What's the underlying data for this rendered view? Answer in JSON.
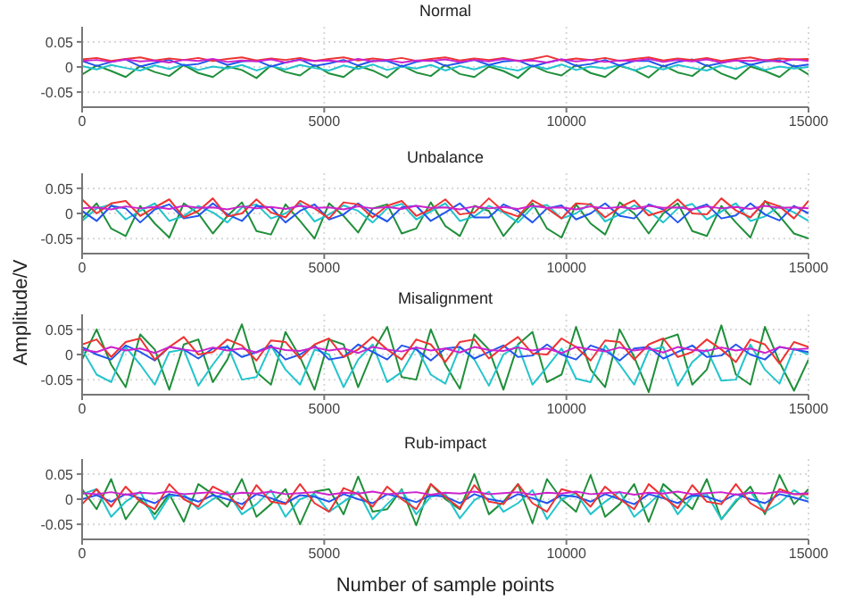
{
  "chart_data": [
    {
      "type": "line",
      "title": "Normal",
      "ylim": [
        -0.08,
        0.08
      ],
      "yticks": [
        -0.05,
        0,
        0.05
      ],
      "xlim": [
        0,
        15000
      ],
      "xticks": [
        0,
        5000,
        10000,
        15000
      ],
      "grid": true,
      "marker": "none",
      "x": [
        0,
        300,
        600,
        900,
        1200,
        1500,
        1800,
        2100,
        2400,
        2700,
        3000,
        3300,
        3600,
        3900,
        4200,
        4500,
        4800,
        5100,
        5400,
        5700,
        6000,
        6300,
        6600,
        6900,
        7200,
        7500,
        7800,
        8100,
        8400,
        8700,
        9000,
        9300,
        9600,
        9900,
        10200,
        10500,
        10800,
        11100,
        11400,
        11700,
        12000,
        12300,
        12600,
        12900,
        13200,
        13500,
        13800,
        14100,
        14400,
        14700,
        15000
      ],
      "series": [
        {
          "color": "#1f8f3a",
          "values": [
            -0.015,
            0.003,
            -0.008,
            -0.02,
            0.002,
            -0.01,
            -0.018,
            0.004,
            -0.012,
            -0.02,
            0.001,
            -0.006,
            -0.022,
            0.003,
            -0.01,
            -0.017,
            0.004,
            -0.013,
            -0.02,
            0.002,
            -0.007,
            -0.021,
            0.003,
            -0.011,
            -0.018,
            0.004,
            -0.014,
            -0.02,
            0.001,
            -0.008,
            -0.022,
            0.003,
            -0.01,
            -0.017,
            0.004,
            -0.012,
            -0.02,
            0.002,
            -0.006,
            -0.021,
            0.003,
            -0.011,
            -0.018,
            0.004,
            -0.013,
            -0.024,
            0.001,
            -0.008,
            -0.02,
            0.003,
            -0.015
          ]
        },
        {
          "color": "#22c4cc",
          "values": [
            0.002,
            -0.005,
            0.004,
            -0.002,
            -0.007,
            0.003,
            -0.004,
            0.005,
            -0.006,
            0.001,
            -0.003,
            0.004,
            -0.007,
            0.002,
            -0.005,
            0.004,
            -0.002,
            -0.007,
            0.003,
            -0.004,
            0.005,
            -0.006,
            0.001,
            -0.003,
            0.004,
            -0.007,
            0.002,
            -0.005,
            0.004,
            -0.002,
            -0.007,
            0.003,
            -0.004,
            0.005,
            -0.006,
            0.001,
            -0.003,
            0.004,
            -0.007,
            0.002,
            -0.005,
            0.004,
            -0.002,
            -0.007,
            0.003,
            -0.004,
            0.005,
            -0.006,
            0.001,
            -0.003,
            0.0
          ]
        },
        {
          "color": "#2255ee",
          "values": [
            0.012,
            0.002,
            0.01,
            0.015,
            0.001,
            0.008,
            0.014,
            0.003,
            0.006,
            0.015,
            0.004,
            0.011,
            0.013,
            0.001,
            0.009,
            0.015,
            0.002,
            0.007,
            0.014,
            0.003,
            0.012,
            0.012,
            0.001,
            0.01,
            0.015,
            0.002,
            0.008,
            0.014,
            0.004,
            0.011,
            0.013,
            0.001,
            0.009,
            0.015,
            0.002,
            0.006,
            0.014,
            0.003,
            0.012,
            0.012,
            0.001,
            0.01,
            0.015,
            0.002,
            0.008,
            0.014,
            0.004,
            0.011,
            0.013,
            0.001,
            0.005
          ]
        },
        {
          "color": "#ee3333",
          "values": [
            0.015,
            0.018,
            0.012,
            0.016,
            0.019,
            0.013,
            0.017,
            0.014,
            0.018,
            0.012,
            0.016,
            0.019,
            0.013,
            0.017,
            0.014,
            0.018,
            0.012,
            0.016,
            0.019,
            0.013,
            0.017,
            0.014,
            0.018,
            0.012,
            0.016,
            0.019,
            0.013,
            0.017,
            0.014,
            0.018,
            0.012,
            0.016,
            0.022,
            0.013,
            0.017,
            0.014,
            0.018,
            0.012,
            0.016,
            0.019,
            0.013,
            0.017,
            0.014,
            0.018,
            0.012,
            0.016,
            0.019,
            0.013,
            0.017,
            0.015,
            0.016
          ]
        },
        {
          "color": "#cc22cc",
          "values": [
            0.012,
            0.014,
            0.01,
            0.015,
            0.011,
            0.013,
            0.009,
            0.014,
            0.012,
            0.016,
            0.01,
            0.013,
            0.011,
            0.015,
            0.009,
            0.014,
            0.012,
            0.013,
            0.01,
            0.016,
            0.011,
            0.014,
            0.009,
            0.013,
            0.012,
            0.015,
            0.01,
            0.014,
            0.011,
            0.016,
            0.012,
            0.013,
            0.009,
            0.015,
            0.011,
            0.014,
            0.01,
            0.013,
            0.012,
            0.016,
            0.01,
            0.014,
            0.011,
            0.015,
            0.009,
            0.013,
            0.012,
            0.014,
            0.01,
            0.015,
            0.012
          ]
        }
      ]
    },
    {
      "type": "line",
      "title": "Unbalance",
      "ylim": [
        -0.08,
        0.08
      ],
      "yticks": [
        -0.05,
        0,
        0.05
      ],
      "xlim": [
        0,
        15000
      ],
      "xticks": [
        0,
        5000,
        10000,
        15000
      ],
      "grid": true,
      "marker": "none",
      "x": [
        0,
        300,
        600,
        900,
        1200,
        1500,
        1800,
        2100,
        2400,
        2700,
        3000,
        3300,
        3600,
        3900,
        4200,
        4500,
        4800,
        5100,
        5400,
        5700,
        6000,
        6300,
        6600,
        6900,
        7200,
        7500,
        7800,
        8100,
        8400,
        8700,
        9000,
        9300,
        9600,
        9900,
        10200,
        10500,
        10800,
        11100,
        11400,
        11700,
        12000,
        12300,
        12600,
        12900,
        13200,
        13500,
        13800,
        14100,
        14400,
        14700,
        15000
      ],
      "series": [
        {
          "color": "#1f8f3a",
          "values": [
            -0.01,
            0.02,
            -0.03,
            -0.045,
            0.015,
            -0.02,
            -0.048,
            0.02,
            0.0,
            -0.04,
            -0.005,
            0.022,
            -0.035,
            -0.042,
            0.018,
            -0.015,
            -0.05,
            0.02,
            -0.005,
            -0.038,
            0.01,
            0.018,
            -0.04,
            -0.03,
            0.022,
            -0.025,
            -0.045,
            0.015,
            0.005,
            -0.045,
            -0.01,
            0.02,
            -0.03,
            -0.048,
            0.018,
            -0.02,
            -0.042,
            0.022,
            0.0,
            -0.04,
            0.0,
            0.02,
            -0.035,
            -0.045,
            0.015,
            -0.018,
            -0.048,
            0.025,
            -0.005,
            -0.04,
            -0.05
          ]
        },
        {
          "color": "#22c4cc",
          "values": [
            -0.015,
            0.01,
            0.018,
            -0.012,
            0.005,
            0.02,
            -0.015,
            -0.005,
            0.015,
            0.002,
            -0.018,
            0.012,
            0.018,
            -0.01,
            0.0,
            0.02,
            -0.016,
            -0.002,
            0.016,
            0.005,
            -0.018,
            0.01,
            0.019,
            -0.012,
            0.004,
            0.02,
            -0.015,
            -0.006,
            0.015,
            0.002,
            -0.018,
            0.012,
            0.017,
            -0.01,
            0.0,
            0.02,
            -0.016,
            -0.002,
            0.016,
            0.005,
            -0.018,
            0.01,
            0.019,
            -0.012,
            0.004,
            0.02,
            -0.015,
            -0.006,
            0.015,
            0.002,
            -0.015
          ]
        },
        {
          "color": "#2255ee",
          "values": [
            0.005,
            -0.015,
            0.015,
            0.01,
            -0.018,
            0.008,
            0.018,
            -0.01,
            -0.005,
            0.02,
            -0.002,
            -0.015,
            0.015,
            0.012,
            -0.018,
            0.005,
            0.018,
            -0.012,
            -0.002,
            0.02,
            0.0,
            -0.016,
            0.012,
            0.015,
            -0.015,
            0.002,
            0.02,
            -0.008,
            -0.008,
            0.018,
            0.005,
            -0.018,
            0.01,
            0.016,
            -0.012,
            0.0,
            0.02,
            -0.005,
            -0.01,
            0.018,
            0.008,
            -0.018,
            0.008,
            0.018,
            -0.01,
            -0.004,
            0.02,
            -0.002,
            -0.014,
            0.015,
            0.0
          ]
        },
        {
          "color": "#ee3333",
          "values": [
            0.028,
            0.0,
            0.02,
            0.025,
            -0.005,
            0.012,
            0.028,
            -0.008,
            0.005,
            0.03,
            -0.006,
            0.0,
            0.028,
            0.002,
            -0.008,
            0.025,
            0.01,
            -0.01,
            0.022,
            0.018,
            -0.008,
            0.015,
            0.025,
            -0.005,
            0.008,
            0.028,
            -0.002,
            0.002,
            0.03,
            0.004,
            -0.006,
            0.026,
            0.01,
            -0.01,
            0.02,
            0.018,
            -0.008,
            0.012,
            0.026,
            -0.004,
            0.005,
            0.028,
            0.0,
            -0.002,
            0.03,
            0.006,
            -0.008,
            0.024,
            0.014,
            -0.01,
            0.025
          ]
        },
        {
          "color": "#cc22cc",
          "values": [
            0.01,
            0.012,
            0.008,
            0.014,
            0.01,
            0.013,
            0.009,
            0.015,
            0.011,
            0.012,
            0.008,
            0.014,
            0.01,
            0.013,
            0.009,
            0.015,
            0.011,
            0.012,
            0.008,
            0.014,
            0.01,
            0.013,
            0.009,
            0.015,
            0.011,
            0.012,
            0.008,
            0.014,
            0.01,
            0.013,
            0.009,
            0.015,
            0.011,
            0.012,
            0.008,
            0.014,
            0.01,
            0.013,
            0.009,
            0.015,
            0.011,
            0.012,
            0.008,
            0.014,
            0.01,
            0.013,
            0.009,
            0.015,
            0.011,
            0.012,
            0.01
          ]
        }
      ]
    },
    {
      "type": "line",
      "title": "Misalignment",
      "ylabel": "Amplitude/V",
      "ylim": [
        -0.08,
        0.08
      ],
      "yticks": [
        -0.05,
        0,
        0.05
      ],
      "xlim": [
        0,
        15000
      ],
      "xticks": [
        0,
        5000,
        10000,
        15000
      ],
      "grid": true,
      "marker": "none",
      "x": [
        0,
        300,
        600,
        900,
        1200,
        1500,
        1800,
        2100,
        2400,
        2700,
        3000,
        3300,
        3600,
        3900,
        4200,
        4500,
        4800,
        5100,
        5400,
        5700,
        6000,
        6300,
        6600,
        6900,
        7200,
        7500,
        7800,
        8100,
        8400,
        8700,
        9000,
        9300,
        9600,
        9900,
        10200,
        10500,
        10800,
        11100,
        11400,
        11700,
        12000,
        12300,
        12600,
        12900,
        13200,
        13500,
        13800,
        14100,
        14400,
        14700,
        15000
      ],
      "series": [
        {
          "color": "#1f8f3a",
          "values": [
            -0.01,
            0.05,
            -0.02,
            -0.065,
            0.04,
            0.01,
            -0.07,
            0.02,
            0.03,
            -0.055,
            -0.01,
            0.06,
            -0.035,
            -0.06,
            0.045,
            -0.005,
            -0.07,
            0.03,
            0.02,
            -0.065,
            0.005,
            0.055,
            -0.045,
            -0.05,
            0.05,
            -0.02,
            -0.068,
            0.04,
            0.01,
            -0.07,
            0.02,
            0.045,
            -0.055,
            -0.04,
            0.055,
            -0.03,
            -0.065,
            0.05,
            -0.005,
            -0.075,
            0.03,
            0.04,
            -0.06,
            -0.03,
            0.058,
            -0.04,
            -0.06,
            0.055,
            -0.015,
            -0.072,
            -0.01
          ]
        },
        {
          "color": "#22c4cc",
          "values": [
            0.01,
            -0.04,
            -0.055,
            0.015,
            -0.02,
            -0.06,
            0.005,
            0.01,
            -0.062,
            -0.02,
            0.018,
            -0.05,
            -0.045,
            0.018,
            -0.03,
            -0.06,
            0.01,
            0.0,
            -0.065,
            -0.01,
            0.02,
            -0.055,
            -0.035,
            0.015,
            -0.04,
            -0.058,
            0.015,
            -0.01,
            -0.062,
            0.0,
            0.018,
            -0.06,
            -0.025,
            0.012,
            -0.048,
            -0.055,
            0.018,
            -0.02,
            -0.06,
            0.008,
            0.015,
            -0.062,
            -0.015,
            0.01,
            -0.052,
            -0.05,
            0.02,
            -0.03,
            -0.058,
            0.012,
            0.0
          ]
        },
        {
          "color": "#2255ee",
          "values": [
            0.015,
            0.0,
            -0.01,
            0.018,
            0.005,
            -0.012,
            0.015,
            0.01,
            -0.008,
            0.012,
            0.015,
            -0.005,
            0.005,
            0.018,
            -0.01,
            0.0,
            0.018,
            -0.01,
            -0.005,
            0.02,
            0.005,
            -0.01,
            0.018,
            0.01,
            -0.012,
            0.012,
            0.015,
            -0.008,
            0.005,
            0.018,
            -0.005,
            -0.002,
            0.02,
            0.0,
            -0.01,
            0.018,
            0.008,
            -0.012,
            0.012,
            0.015,
            -0.008,
            0.005,
            0.018,
            -0.005,
            -0.002,
            0.02,
            0.0,
            -0.01,
            0.015,
            0.01,
            0.005
          ]
        },
        {
          "color": "#ee3333",
          "values": [
            0.02,
            0.03,
            -0.005,
            0.025,
            0.032,
            -0.01,
            0.015,
            0.035,
            0.0,
            0.005,
            0.03,
            0.018,
            -0.012,
            0.028,
            0.025,
            -0.008,
            0.02,
            0.032,
            -0.005,
            0.01,
            0.035,
            0.01,
            -0.01,
            0.03,
            0.02,
            -0.015,
            0.025,
            0.03,
            -0.008,
            0.015,
            0.035,
            0.002,
            0.0,
            0.032,
            0.015,
            -0.012,
            0.028,
            0.025,
            -0.01,
            0.02,
            0.032,
            -0.005,
            0.005,
            0.03,
            0.01,
            -0.015,
            0.03,
            0.02,
            -0.018,
            0.025,
            0.015
          ]
        },
        {
          "color": "#cc22cc",
          "values": [
            0.01,
            0.005,
            0.015,
            0.008,
            0.012,
            0.003,
            0.015,
            0.01,
            0.006,
            0.014,
            0.008,
            0.012,
            0.004,
            0.015,
            0.009,
            0.007,
            0.014,
            0.008,
            0.012,
            0.003,
            0.015,
            0.01,
            0.006,
            0.014,
            0.008,
            0.012,
            0.004,
            0.015,
            0.009,
            0.007,
            0.014,
            0.008,
            0.012,
            0.003,
            0.015,
            0.01,
            0.006,
            0.014,
            0.008,
            0.012,
            0.004,
            0.015,
            0.009,
            0.007,
            0.014,
            0.008,
            0.012,
            0.003,
            0.015,
            0.01,
            0.012
          ]
        }
      ]
    },
    {
      "type": "line",
      "title": "Rub-impact",
      "xlabel": "Number of sample points",
      "ylim": [
        -0.08,
        0.08
      ],
      "yticks": [
        -0.05,
        0,
        0.05
      ],
      "xlim": [
        0,
        15000
      ],
      "xticks": [
        0,
        5000,
        10000,
        15000
      ],
      "grid": true,
      "marker": "none",
      "x": [
        0,
        300,
        600,
        900,
        1200,
        1500,
        1800,
        2100,
        2400,
        2700,
        3000,
        3300,
        3600,
        3900,
        4200,
        4500,
        4800,
        5100,
        5400,
        5700,
        6000,
        6300,
        6600,
        6900,
        7200,
        7500,
        7800,
        8100,
        8400,
        8700,
        9000,
        9300,
        9600,
        9900,
        10200,
        10500,
        10800,
        11100,
        11400,
        11700,
        12000,
        12300,
        12600,
        12900,
        13200,
        13500,
        13800,
        14100,
        14400,
        14700,
        15000
      ],
      "series": [
        {
          "color": "#1f8f3a",
          "values": [
            0.02,
            -0.02,
            0.04,
            -0.04,
            0.0,
            -0.03,
            0.01,
            -0.045,
            0.03,
            0.01,
            -0.015,
            0.04,
            -0.035,
            -0.01,
            0.02,
            -0.05,
            0.015,
            0.02,
            -0.03,
            0.045,
            -0.025,
            -0.02,
            0.02,
            -0.052,
            0.03,
            0.0,
            -0.02,
            0.05,
            -0.03,
            -0.005,
            0.03,
            -0.048,
            0.04,
            0.0,
            -0.025,
            0.048,
            -0.035,
            -0.01,
            0.03,
            -0.045,
            0.03,
            0.005,
            -0.02,
            0.04,
            -0.04,
            -0.005,
            0.025,
            -0.03,
            0.048,
            -0.01,
            0.02
          ]
        },
        {
          "color": "#22c4cc",
          "values": [
            0.01,
            0.02,
            -0.035,
            -0.005,
            0.015,
            -0.04,
            0.005,
            0.01,
            -0.02,
            0.0,
            0.015,
            -0.03,
            -0.01,
            0.018,
            -0.035,
            0.0,
            0.01,
            -0.025,
            -0.005,
            0.015,
            -0.04,
            -0.01,
            0.018,
            -0.03,
            0.005,
            0.01,
            -0.038,
            -0.002,
            0.015,
            -0.025,
            -0.008,
            0.018,
            -0.04,
            0.0,
            0.012,
            -0.03,
            -0.005,
            0.015,
            -0.035,
            -0.01,
            0.018,
            -0.03,
            0.005,
            0.01,
            -0.04,
            -0.002,
            0.015,
            -0.025,
            -0.008,
            0.018,
            0.0
          ]
        },
        {
          "color": "#2255ee",
          "values": [
            0.0,
            0.008,
            -0.005,
            0.01,
            0.002,
            -0.008,
            0.01,
            0.005,
            -0.005,
            0.008,
            0.0,
            -0.01,
            0.01,
            0.002,
            -0.008,
            0.008,
            0.005,
            -0.005,
            0.01,
            0.0,
            -0.008,
            0.01,
            0.003,
            -0.006,
            0.008,
            0.005,
            -0.008,
            0.01,
            0.0,
            -0.005,
            0.01,
            0.002,
            -0.008,
            0.008,
            0.005,
            -0.005,
            0.01,
            0.0,
            -0.01,
            0.01,
            0.002,
            -0.008,
            0.008,
            0.005,
            -0.005,
            0.01,
            0.0,
            -0.008,
            0.01,
            0.003,
            -0.005
          ]
        },
        {
          "color": "#ee3333",
          "values": [
            -0.01,
            0.02,
            -0.015,
            0.025,
            -0.005,
            -0.02,
            0.03,
            0.0,
            -0.015,
            0.025,
            0.01,
            -0.02,
            0.028,
            -0.005,
            -0.01,
            0.03,
            -0.008,
            -0.025,
            0.022,
            0.01,
            -0.015,
            0.025,
            0.0,
            -0.02,
            0.03,
            0.005,
            -0.018,
            0.028,
            -0.005,
            -0.01,
            0.03,
            -0.008,
            -0.025,
            0.02,
            0.012,
            -0.015,
            0.025,
            0.0,
            -0.02,
            0.03,
            0.005,
            -0.018,
            0.028,
            -0.005,
            -0.01,
            0.03,
            -0.008,
            -0.025,
            0.02,
            0.01,
            0.01
          ]
        },
        {
          "color": "#cc22cc",
          "values": [
            0.012,
            0.01,
            0.014,
            0.009,
            0.013,
            0.011,
            0.015,
            0.01,
            0.012,
            0.014,
            0.009,
            0.013,
            0.011,
            0.015,
            0.01,
            0.012,
            0.014,
            0.009,
            0.013,
            0.011,
            0.015,
            0.01,
            0.012,
            0.014,
            0.009,
            0.013,
            0.011,
            0.015,
            0.01,
            0.012,
            0.014,
            0.009,
            0.013,
            0.011,
            0.015,
            0.01,
            0.012,
            0.014,
            0.009,
            0.013,
            0.011,
            0.015,
            0.01,
            0.012,
            0.014,
            0.009,
            0.013,
            0.011,
            0.015,
            0.01,
            0.012
          ]
        }
      ]
    }
  ]
}
